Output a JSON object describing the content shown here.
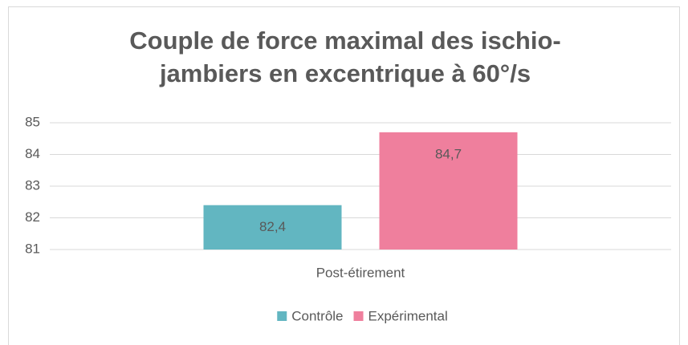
{
  "chart_data": {
    "type": "bar",
    "title": "Couple de force maximal des ischio-jambiers en excentrique à 60°/s",
    "categories": [
      "Post-étirement"
    ],
    "series": [
      {
        "name": "Contrôle",
        "color": "#62b6c1",
        "values": [
          82.4
        ],
        "value_labels": [
          "82,4"
        ]
      },
      {
        "name": "Expérimental",
        "color": "#ef7f9d",
        "values": [
          84.7
        ],
        "value_labels": [
          "84,7"
        ]
      }
    ],
    "ylim": [
      81,
      85
    ],
    "yticks": [
      81,
      82,
      83,
      84,
      85
    ],
    "grid": true,
    "legend": "bottom"
  }
}
